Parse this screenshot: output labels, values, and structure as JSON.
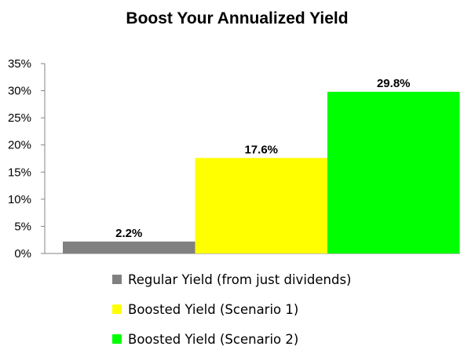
{
  "chart_data": {
    "type": "bar",
    "title": "Boost Your Annualized Yield",
    "categories": [
      "Regular Yield (from just dividends)",
      "Boosted Yield (Scenario 1)",
      "Boosted Yield (Scenario 2)"
    ],
    "values": [
      2.2,
      17.6,
      29.8
    ],
    "data_labels": [
      "2.2%",
      "17.6%",
      "29.8%"
    ],
    "colors": [
      "#808080",
      "#ffff00",
      "#00ff00"
    ],
    "ylim": [
      0,
      35
    ],
    "yticks": [
      0,
      5,
      10,
      15,
      20,
      25,
      30,
      35
    ],
    "ytick_labels": [
      "0%",
      "5%",
      "10%",
      "15%",
      "20%",
      "25%",
      "30%",
      "35%"
    ],
    "xlabel": "",
    "ylabel": "",
    "grid": false,
    "legend_placement": "bottom"
  }
}
